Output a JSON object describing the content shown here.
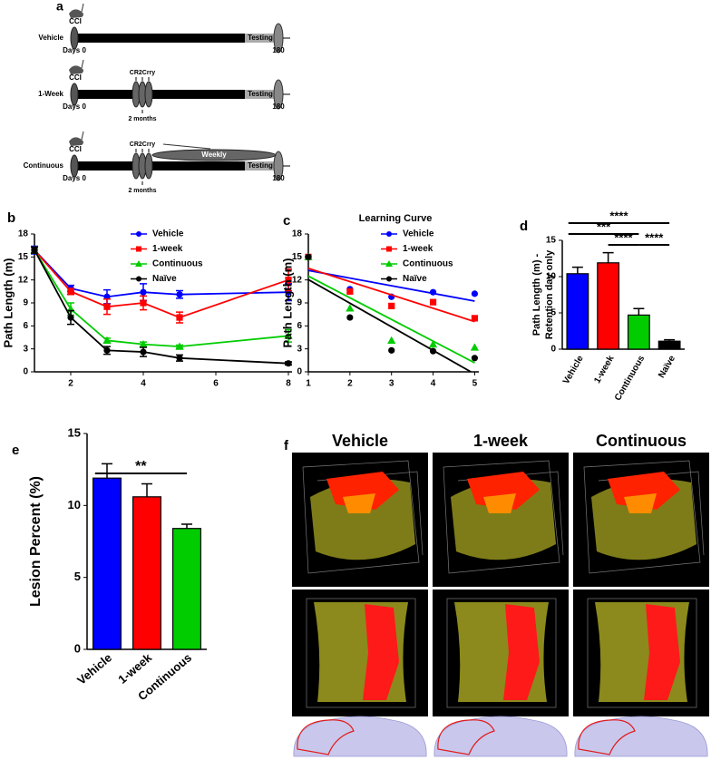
{
  "timeline": {
    "panel": "a",
    "injury": "CCI",
    "treatment": "CR2Crry",
    "weekly": "Weekly",
    "start": "Days 0",
    "end": "180",
    "testing": "Testing",
    "interval": "2 months",
    "groups": [
      "Vehicle",
      "1-Week",
      "Continuous"
    ]
  },
  "chart_data": [
    {
      "panel": "b",
      "type": "line",
      "ylabel": "Path Length (m)",
      "x": [
        1,
        2,
        3,
        4,
        5,
        8
      ],
      "xlim": [
        1,
        8.1
      ],
      "xticks": [
        2,
        4,
        6,
        8
      ],
      "ylim": [
        0,
        18
      ],
      "yticks": [
        0,
        3,
        6,
        9,
        12,
        15,
        18
      ],
      "series": [
        {
          "name": "Vehicle",
          "color": "#0000ff",
          "marker": "circle",
          "values": [
            15.9,
            10.9,
            9.8,
            10.4,
            10.1,
            10.4
          ],
          "errors": [
            0.5,
            0.4,
            0.9,
            1.1,
            0.5,
            1.1
          ]
        },
        {
          "name": "1-week",
          "color": "#ff0000",
          "marker": "square",
          "values": [
            15.9,
            10.5,
            8.5,
            9.0,
            7.1,
            12.0
          ],
          "errors": [
            0.4,
            0.4,
            1.0,
            0.9,
            0.7,
            1.4
          ]
        },
        {
          "name": "Continuous",
          "color": "#00cc00",
          "marker": "triangle",
          "values": [
            15.9,
            8.2,
            4.1,
            3.6,
            3.3,
            4.7
          ],
          "errors": [
            0.4,
            0.8,
            0.3,
            0.3,
            0.2,
            0.8
          ]
        },
        {
          "name": "Naïve",
          "color": "#000000",
          "marker": "circle",
          "values": [
            15.9,
            7.1,
            2.8,
            2.6,
            1.8,
            1.1
          ],
          "errors": [
            0.4,
            0.9,
            0.5,
            0.6,
            0.4,
            0.2
          ]
        }
      ]
    },
    {
      "panel": "c",
      "type": "scatter",
      "title": "Learning Curve",
      "ylabel": "Path Length (m)",
      "fit": "linear",
      "x": [
        1,
        2,
        3,
        4,
        5
      ],
      "xlim": [
        1,
        5.1
      ],
      "xticks": [
        1,
        2,
        3,
        4,
        5
      ],
      "ylim": [
        0,
        18
      ],
      "yticks": [
        0,
        3,
        6,
        9,
        12,
        15,
        18
      ],
      "series": [
        {
          "name": "Vehicle",
          "color": "#0000ff",
          "marker": "circle",
          "values": [
            15.0,
            10.8,
            9.8,
            10.4,
            10.2
          ]
        },
        {
          "name": "1-week",
          "color": "#ff0000",
          "marker": "square",
          "values": [
            15.0,
            10.5,
            8.6,
            9.1,
            7.0
          ]
        },
        {
          "name": "Continuous",
          "color": "#00cc00",
          "marker": "triangle",
          "values": [
            15.0,
            8.3,
            4.1,
            3.6,
            3.2
          ]
        },
        {
          "name": "Naïve",
          "color": "#000000",
          "marker": "circle",
          "values": [
            15.0,
            7.1,
            2.8,
            2.7,
            1.8
          ]
        }
      ]
    },
    {
      "panel": "d",
      "type": "bar",
      "ylabel": [
        "Path  Length (m) -",
        "Retention day only"
      ],
      "categories": [
        "Vehicle",
        "1-week",
        "Continuous",
        "Naïve"
      ],
      "values": [
        10.4,
        11.9,
        4.7,
        1.1
      ],
      "errors": [
        0.9,
        1.4,
        0.9,
        0.2
      ],
      "colors": [
        "#0000ff",
        "#ff0000",
        "#00cc00",
        "#000000"
      ],
      "ylim": [
        0,
        15
      ],
      "yticks": [
        0,
        5,
        10,
        15
      ],
      "significance": [
        {
          "label": "****",
          "groups": [
            "Vehicle",
            "Naïve"
          ]
        },
        {
          "label": "***",
          "groups": [
            "Vehicle",
            "Continuous"
          ]
        },
        {
          "label": "****",
          "groups": [
            "1-week",
            "Continuous"
          ]
        },
        {
          "label": "****",
          "groups": [
            "Continuous",
            "Naïve"
          ]
        }
      ]
    },
    {
      "panel": "e",
      "type": "bar",
      "ylabel": "Lesion Percent (%)",
      "categories": [
        "Vehicle",
        "1-week",
        "Continuous"
      ],
      "values": [
        11.9,
        10.6,
        8.4
      ],
      "errors": [
        1.0,
        0.9,
        0.3
      ],
      "colors": [
        "#0000ff",
        "#ff0000",
        "#00cc00"
      ],
      "ylim": [
        0,
        15
      ],
      "yticks": [
        0,
        5,
        10,
        15
      ],
      "significance": [
        {
          "label": "**",
          "groups": [
            "Vehicle",
            "Continuous"
          ]
        }
      ]
    }
  ],
  "images": {
    "panel": "f",
    "columns": [
      "Vehicle",
      "1-week",
      "Continuous"
    ]
  }
}
